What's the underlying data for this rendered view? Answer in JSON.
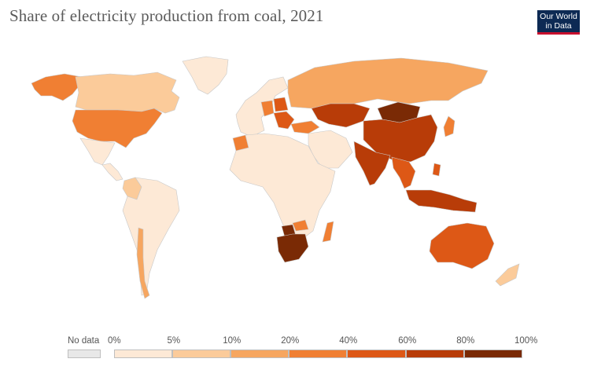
{
  "header": {
    "title": "Share of electricity production from coal, 2021",
    "logo_line1": "Our World",
    "logo_line2": "in Data"
  },
  "colors": {
    "ocean": "#ffffff",
    "border": "#c8c8c8",
    "nodata": "#e8e8e8",
    "bins": [
      "#fde9d6",
      "#fbcb9a",
      "#f6a660",
      "#f07f33",
      "#dd5816",
      "#b83c08",
      "#7a2a05"
    ]
  },
  "legend": {
    "nodata_label": "No data",
    "ticks": [
      "0%",
      "5%",
      "10%",
      "20%",
      "40%",
      "60%",
      "80%",
      "100%"
    ]
  },
  "chart_data": {
    "type": "choropleth",
    "title": "Share of electricity production from coal, 2021",
    "unit": "%",
    "bins": [
      0,
      5,
      10,
      20,
      40,
      60,
      80,
      100
    ],
    "regions": [
      {
        "name": "Canada",
        "bin": 1
      },
      {
        "name": "United States",
        "bin": 3
      },
      {
        "name": "Mexico",
        "bin": 0
      },
      {
        "name": "Alaska",
        "bin": 3
      },
      {
        "name": "Greenland",
        "bin": 0
      },
      {
        "name": "Central America",
        "bin": 0
      },
      {
        "name": "Colombia",
        "bin": 1
      },
      {
        "name": "South America",
        "bin": 0
      },
      {
        "name": "Chile",
        "bin": 2
      },
      {
        "name": "Western Europe",
        "bin": 0
      },
      {
        "name": "Poland",
        "bin": 4
      },
      {
        "name": "Germany",
        "bin": 3
      },
      {
        "name": "Balkans",
        "bin": 4
      },
      {
        "name": "Turkey",
        "bin": 3
      },
      {
        "name": "Russia",
        "bin": 2
      },
      {
        "name": "Kazakhstan",
        "bin": 5
      },
      {
        "name": "Mongolia",
        "bin": 6
      },
      {
        "name": "China",
        "bin": 5
      },
      {
        "name": "India",
        "bin": 5
      },
      {
        "name": "Middle East",
        "bin": 0
      },
      {
        "name": "Morocco",
        "bin": 3
      },
      {
        "name": "Africa",
        "bin": 0
      },
      {
        "name": "Zimbabwe",
        "bin": 3
      },
      {
        "name": "Botswana",
        "bin": 6
      },
      {
        "name": "South Africa",
        "bin": 6
      },
      {
        "name": "Madagascar",
        "bin": 3
      },
      {
        "name": "Southeast Asia",
        "bin": 4
      },
      {
        "name": "Indonesia",
        "bin": 5
      },
      {
        "name": "Philippines",
        "bin": 4
      },
      {
        "name": "Japan",
        "bin": 3
      },
      {
        "name": "Australia",
        "bin": 4
      },
      {
        "name": "New Zealand",
        "bin": 1
      }
    ]
  }
}
